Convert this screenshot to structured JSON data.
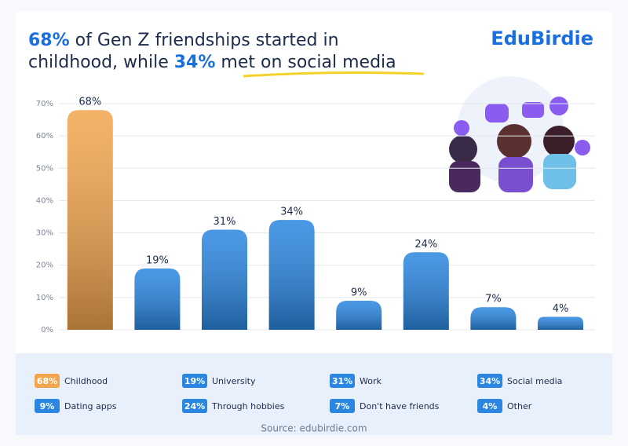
{
  "brand": "EduBirdie",
  "source": "Source: edubirdie.com",
  "chart_data": {
    "type": "bar",
    "title": [
      [
        "68%",
        " of Gen Z friendships started in"
      ],
      [
        "childhood, while ",
        "34%",
        " met on social media"
      ]
    ],
    "categories": [
      "Childhood",
      "University",
      "Work",
      "Social media",
      "Dating apps",
      "Through hobbies",
      "Don't have friends",
      "Other"
    ],
    "values": [
      68,
      19,
      31,
      34,
      9,
      24,
      7,
      4
    ],
    "value_labels": [
      "68%",
      "19%",
      "31%",
      "34%",
      "9%",
      "24%",
      "7%",
      "4%"
    ],
    "colors": [
      "#f2a54e",
      "#2a86e0",
      "#2a86e0",
      "#2a86e0",
      "#2a86e0",
      "#2a86e0",
      "#2a86e0",
      "#2a86e0"
    ],
    "ylim": [
      0,
      70
    ],
    "yticks": [
      {
        "value": 0,
        "label": "0%"
      },
      {
        "value": 10,
        "label": "10%"
      },
      {
        "value": 20,
        "label": "20%"
      },
      {
        "value": 30,
        "label": "30%"
      },
      {
        "value": 40,
        "label": "40%"
      },
      {
        "value": 50,
        "label": "50%"
      },
      {
        "value": 60,
        "label": "60%"
      },
      {
        "value": 70,
        "label": "70%"
      }
    ],
    "grid": true
  }
}
